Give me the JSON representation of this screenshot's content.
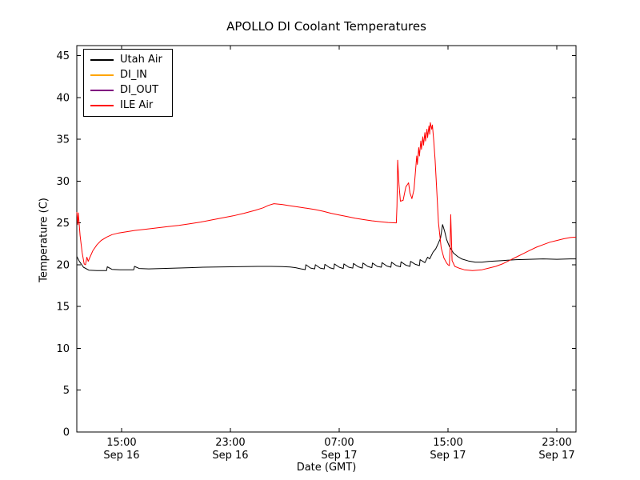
{
  "title": "APOLLO DI Coolant Temperatures",
  "xlabel": "Date (GMT)",
  "ylabel": "Temperature (C)",
  "chart_data": {
    "type": "line",
    "title": "APOLLO DI Coolant Temperatures",
    "xlabel": "Date (GMT)",
    "ylabel": "Temperature (C)",
    "grid": false,
    "legend_position": "upper left",
    "x_unit": "hours since Sep 16 00:00 GMT",
    "plot_xlim": [
      11.71,
      48.41
    ],
    "plot_ylim": [
      0,
      46.2
    ],
    "ylim": [
      0,
      45
    ],
    "yticks": [
      0,
      5,
      10,
      15,
      20,
      25,
      30,
      35,
      40,
      45
    ],
    "xticks": [
      {
        "value": 15,
        "time": "15:00",
        "date": "Sep 16"
      },
      {
        "value": 23,
        "time": "23:00",
        "date": "Sep 16"
      },
      {
        "value": 31,
        "time": "07:00",
        "date": "Sep 17"
      },
      {
        "value": 39,
        "time": "15:00",
        "date": "Sep 17"
      },
      {
        "value": 47,
        "time": "23:00",
        "date": "Sep 17"
      }
    ],
    "series": [
      {
        "name": "Utah Air",
        "color": "#000000",
        "points": [
          [
            11.71,
            21.0
          ],
          [
            11.9,
            20.4
          ],
          [
            12.2,
            19.7
          ],
          [
            12.6,
            19.35
          ],
          [
            13.2,
            19.3
          ],
          [
            13.9,
            19.3
          ],
          [
            13.95,
            19.75
          ],
          [
            14.3,
            19.45
          ],
          [
            14.9,
            19.4
          ],
          [
            15.9,
            19.4
          ],
          [
            15.95,
            19.8
          ],
          [
            16.3,
            19.55
          ],
          [
            17.0,
            19.5
          ],
          [
            18.0,
            19.55
          ],
          [
            19.0,
            19.6
          ],
          [
            20.0,
            19.65
          ],
          [
            21.0,
            19.7
          ],
          [
            22.0,
            19.72
          ],
          [
            23.0,
            19.75
          ],
          [
            24.0,
            19.78
          ],
          [
            25.0,
            19.8
          ],
          [
            26.0,
            19.8
          ],
          [
            26.8,
            19.78
          ],
          [
            27.4,
            19.72
          ],
          [
            27.8,
            19.65
          ],
          [
            28.2,
            19.5
          ],
          [
            28.5,
            19.42
          ],
          [
            28.55,
            20.0
          ],
          [
            28.9,
            19.6
          ],
          [
            29.2,
            19.5
          ],
          [
            29.25,
            20.0
          ],
          [
            29.6,
            19.6
          ],
          [
            29.9,
            19.5
          ],
          [
            29.95,
            20.05
          ],
          [
            30.3,
            19.65
          ],
          [
            30.6,
            19.5
          ],
          [
            30.65,
            20.1
          ],
          [
            31.0,
            19.7
          ],
          [
            31.3,
            19.55
          ],
          [
            31.35,
            20.1
          ],
          [
            31.7,
            19.7
          ],
          [
            32.0,
            19.6
          ],
          [
            32.05,
            20.15
          ],
          [
            32.4,
            19.75
          ],
          [
            32.7,
            19.6
          ],
          [
            32.75,
            20.2
          ],
          [
            33.1,
            19.8
          ],
          [
            33.4,
            19.65
          ],
          [
            33.45,
            20.2
          ],
          [
            33.8,
            19.8
          ],
          [
            34.1,
            19.7
          ],
          [
            34.15,
            20.25
          ],
          [
            34.5,
            19.85
          ],
          [
            34.8,
            19.7
          ],
          [
            34.85,
            20.3
          ],
          [
            35.2,
            19.9
          ],
          [
            35.5,
            19.75
          ],
          [
            35.55,
            20.35
          ],
          [
            35.9,
            19.95
          ],
          [
            36.2,
            19.8
          ],
          [
            36.25,
            20.4
          ],
          [
            36.6,
            20.05
          ],
          [
            36.9,
            19.9
          ],
          [
            36.95,
            20.6
          ],
          [
            37.3,
            20.25
          ],
          [
            37.5,
            20.9
          ],
          [
            37.65,
            20.7
          ],
          [
            37.9,
            21.5
          ],
          [
            38.1,
            21.9
          ],
          [
            38.3,
            22.6
          ],
          [
            38.45,
            23.2
          ],
          [
            38.6,
            24.8
          ],
          [
            38.75,
            24.0
          ],
          [
            38.9,
            23.0
          ],
          [
            39.1,
            22.2
          ],
          [
            39.4,
            21.4
          ],
          [
            39.7,
            21.0
          ],
          [
            40.0,
            20.7
          ],
          [
            40.5,
            20.45
          ],
          [
            41.0,
            20.3
          ],
          [
            41.5,
            20.3
          ],
          [
            42.0,
            20.4
          ],
          [
            43.0,
            20.5
          ],
          [
            44.0,
            20.6
          ],
          [
            45.0,
            20.65
          ],
          [
            46.0,
            20.7
          ],
          [
            47.0,
            20.65
          ],
          [
            48.0,
            20.7
          ],
          [
            48.41,
            20.7
          ]
        ]
      },
      {
        "name": "DI_IN",
        "color": "#ffa500",
        "points": []
      },
      {
        "name": "DI_OUT",
        "color": "#800080",
        "points": []
      },
      {
        "name": "ILE Air",
        "color": "#ff0000",
        "points": [
          [
            11.71,
            26.3
          ],
          [
            11.78,
            24.8
          ],
          [
            11.82,
            26.2
          ],
          [
            11.95,
            23.5
          ],
          [
            12.1,
            21.5
          ],
          [
            12.25,
            20.1
          ],
          [
            12.35,
            20.0
          ],
          [
            12.45,
            20.9
          ],
          [
            12.55,
            20.4
          ],
          [
            12.65,
            20.8
          ],
          [
            12.9,
            21.7
          ],
          [
            13.2,
            22.4
          ],
          [
            13.5,
            22.9
          ],
          [
            13.9,
            23.3
          ],
          [
            14.3,
            23.6
          ],
          [
            14.8,
            23.8
          ],
          [
            15.4,
            23.95
          ],
          [
            16.0,
            24.1
          ],
          [
            16.8,
            24.25
          ],
          [
            17.6,
            24.4
          ],
          [
            18.4,
            24.55
          ],
          [
            19.2,
            24.7
          ],
          [
            20.0,
            24.9
          ],
          [
            20.8,
            25.1
          ],
          [
            21.6,
            25.35
          ],
          [
            22.4,
            25.6
          ],
          [
            23.2,
            25.85
          ],
          [
            24.0,
            26.15
          ],
          [
            24.8,
            26.5
          ],
          [
            25.4,
            26.8
          ],
          [
            25.8,
            27.1
          ],
          [
            26.2,
            27.3
          ],
          [
            26.8,
            27.2
          ],
          [
            27.4,
            27.05
          ],
          [
            28.0,
            26.9
          ],
          [
            28.6,
            26.75
          ],
          [
            29.2,
            26.6
          ],
          [
            29.8,
            26.4
          ],
          [
            30.4,
            26.15
          ],
          [
            31.0,
            25.95
          ],
          [
            31.6,
            25.75
          ],
          [
            32.2,
            25.55
          ],
          [
            32.8,
            25.4
          ],
          [
            33.4,
            25.25
          ],
          [
            34.0,
            25.15
          ],
          [
            34.6,
            25.05
          ],
          [
            35.2,
            25.0
          ],
          [
            35.25,
            27.0
          ],
          [
            35.3,
            32.5
          ],
          [
            35.4,
            29.5
          ],
          [
            35.5,
            27.6
          ],
          [
            35.7,
            27.7
          ],
          [
            35.9,
            29.3
          ],
          [
            36.1,
            29.8
          ],
          [
            36.2,
            28.6
          ],
          [
            36.35,
            27.9
          ],
          [
            36.5,
            29.0
          ],
          [
            36.6,
            31.0
          ],
          [
            36.7,
            33.0
          ],
          [
            36.75,
            32.0
          ],
          [
            36.85,
            34.0
          ],
          [
            36.9,
            33.0
          ],
          [
            37.0,
            34.8
          ],
          [
            37.05,
            33.8
          ],
          [
            37.15,
            35.3
          ],
          [
            37.2,
            34.3
          ],
          [
            37.3,
            35.8
          ],
          [
            37.35,
            34.8
          ],
          [
            37.45,
            36.2
          ],
          [
            37.5,
            35.2
          ],
          [
            37.6,
            36.6
          ],
          [
            37.65,
            35.6
          ],
          [
            37.7,
            37.0
          ],
          [
            37.8,
            36.2
          ],
          [
            37.85,
            36.7
          ],
          [
            37.95,
            34.8
          ],
          [
            38.05,
            32.5
          ],
          [
            38.15,
            29.5
          ],
          [
            38.3,
            25.0
          ],
          [
            38.5,
            22.0
          ],
          [
            38.7,
            20.8
          ],
          [
            38.9,
            20.2
          ],
          [
            39.0,
            20.0
          ],
          [
            39.1,
            19.9
          ],
          [
            39.15,
            22.0
          ],
          [
            39.2,
            26.0
          ],
          [
            39.3,
            20.5
          ],
          [
            39.5,
            19.8
          ],
          [
            39.8,
            19.6
          ],
          [
            40.2,
            19.4
          ],
          [
            40.8,
            19.3
          ],
          [
            41.5,
            19.4
          ],
          [
            42.0,
            19.6
          ],
          [
            42.5,
            19.8
          ],
          [
            43.0,
            20.1
          ],
          [
            43.5,
            20.5
          ],
          [
            44.0,
            20.9
          ],
          [
            44.5,
            21.3
          ],
          [
            45.0,
            21.7
          ],
          [
            45.5,
            22.1
          ],
          [
            46.0,
            22.4
          ],
          [
            46.5,
            22.7
          ],
          [
            47.0,
            22.9
          ],
          [
            47.5,
            23.1
          ],
          [
            48.0,
            23.25
          ],
          [
            48.41,
            23.3
          ]
        ]
      }
    ]
  }
}
